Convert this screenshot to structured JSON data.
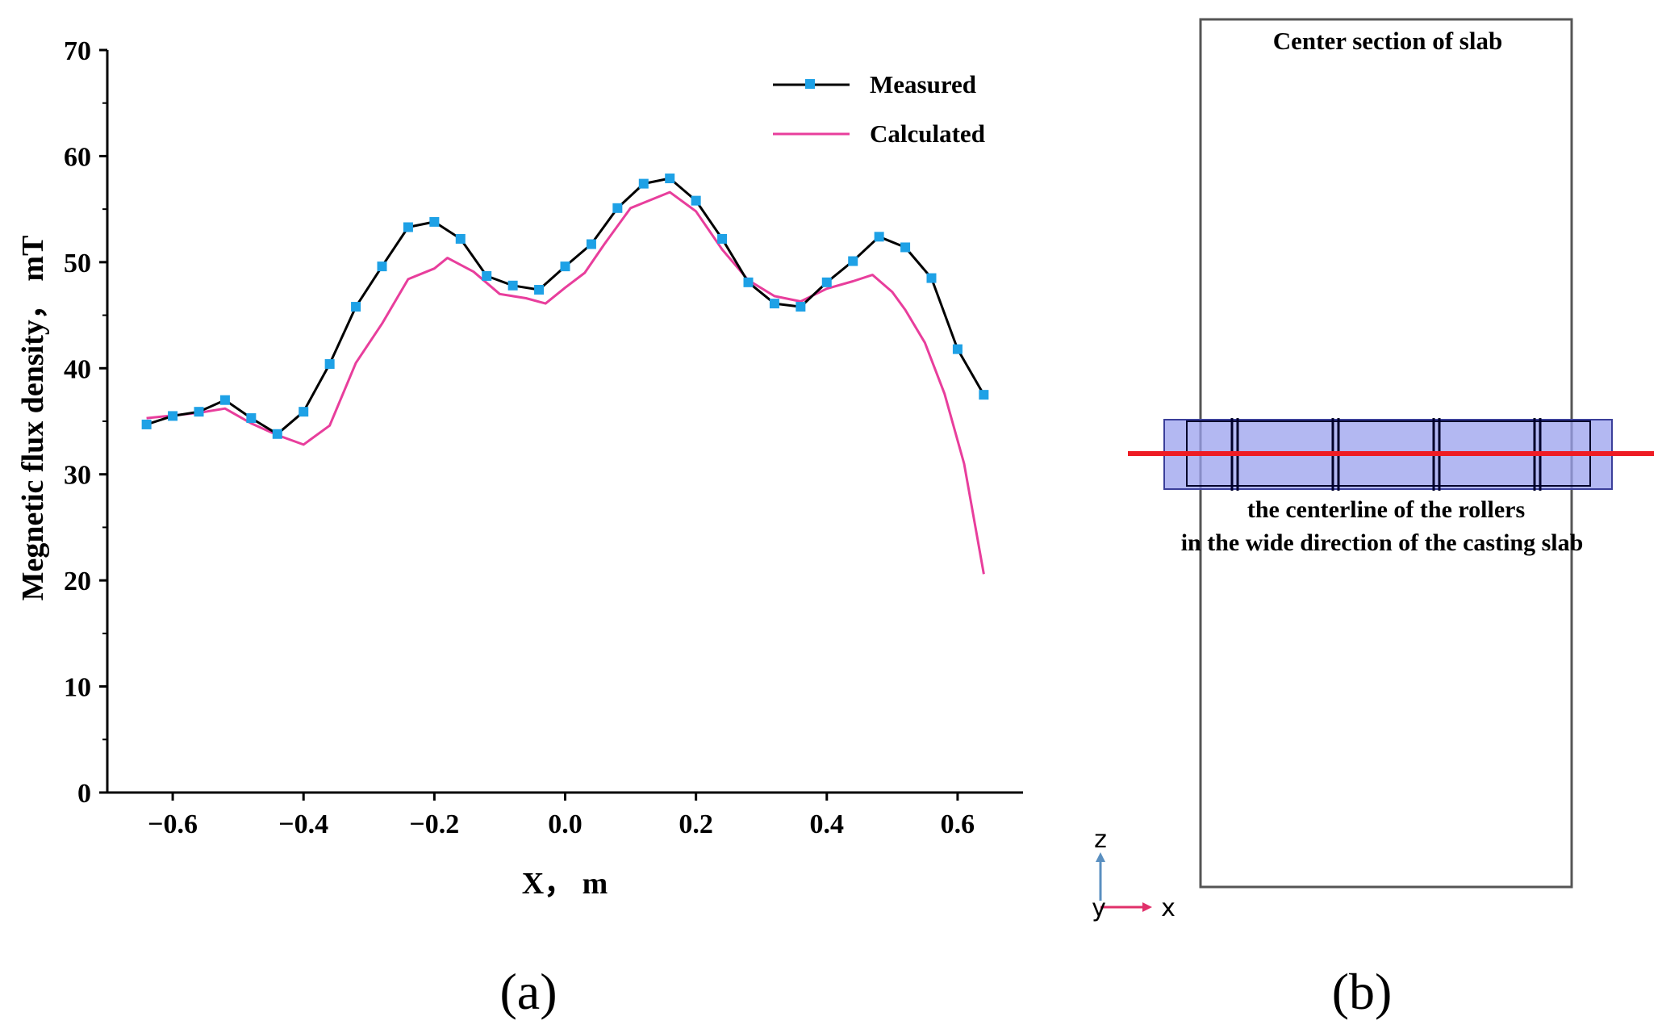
{
  "chart_data": {
    "type": "line",
    "xlabel": "X， m",
    "ylabel": "Megnetic flux density， mT",
    "xlim": [
      -0.7,
      0.7
    ],
    "ylim": [
      0,
      70
    ],
    "xticks": [
      "−0.6",
      "−0.4",
      "−0.2",
      "0.0",
      "0.2",
      "0.4",
      "0.6"
    ],
    "xtick_values": [
      -0.6,
      -0.4,
      -0.2,
      0.0,
      0.2,
      0.4,
      0.6
    ],
    "yticks": [
      "0",
      "10",
      "20",
      "30",
      "40",
      "50",
      "60",
      "70"
    ],
    "ytick_values": [
      0,
      10,
      20,
      30,
      40,
      50,
      60,
      70
    ],
    "legend_position": "top-right",
    "series": [
      {
        "name": "Measured",
        "color": "#000000",
        "marker_color": "#1ea1e6",
        "x": [
          -0.64,
          -0.6,
          -0.56,
          -0.52,
          -0.48,
          -0.44,
          -0.4,
          -0.36,
          -0.32,
          -0.28,
          -0.24,
          -0.2,
          -0.16,
          -0.12,
          -0.08,
          -0.04,
          0.0,
          0.04,
          0.08,
          0.12,
          0.16,
          0.2,
          0.24,
          0.28,
          0.32,
          0.36,
          0.4,
          0.44,
          0.48,
          0.52,
          0.56,
          0.6,
          0.64
        ],
        "y": [
          34.7,
          35.5,
          35.9,
          37.0,
          35.3,
          33.8,
          35.9,
          40.4,
          45.8,
          49.6,
          53.3,
          53.8,
          52.2,
          48.7,
          47.8,
          47.4,
          49.6,
          51.7,
          55.1,
          57.4,
          57.9,
          55.8,
          52.2,
          48.1,
          46.1,
          45.8,
          48.1,
          50.1,
          52.4,
          51.4,
          48.5,
          41.8,
          37.5
        ]
      },
      {
        "name": "Calculated",
        "color": "#e83e9c",
        "x": [
          -0.64,
          -0.56,
          -0.52,
          -0.48,
          -0.44,
          -0.4,
          -0.36,
          -0.32,
          -0.28,
          -0.24,
          -0.2,
          -0.18,
          -0.14,
          -0.1,
          -0.06,
          -0.03,
          0.0,
          0.03,
          0.06,
          0.1,
          0.16,
          0.2,
          0.24,
          0.28,
          0.32,
          0.36,
          0.4,
          0.44,
          0.47,
          0.5,
          0.52,
          0.55,
          0.58,
          0.61,
          0.64
        ],
        "y": [
          35.3,
          35.8,
          36.2,
          34.8,
          33.7,
          32.8,
          34.6,
          40.5,
          44.2,
          48.4,
          49.4,
          50.4,
          49.1,
          47.0,
          46.6,
          46.1,
          47.6,
          49.0,
          51.7,
          55.1,
          56.6,
          54.8,
          51.2,
          48.3,
          46.8,
          46.3,
          47.5,
          48.2,
          48.8,
          47.2,
          45.5,
          42.4,
          37.6,
          31.0,
          20.6
        ]
      }
    ]
  },
  "panel_a": {
    "label": "(a)"
  },
  "panel_b": {
    "label": "(b)",
    "slab_title": "Center section of slab",
    "caption_line1": "the centerline of the rollers",
    "caption_line2": "in the wide direction of the casting slab",
    "axis_z": "z",
    "axis_y": "y",
    "axis_x": "x",
    "colors": {
      "band_fill": "#9aa0ee",
      "band_stroke": "#00002a",
      "red_line": "#ee1c24",
      "slab_stroke": "#555555",
      "axis_z_color": "#5a8fc0",
      "axis_x_color": "#e0306a"
    }
  }
}
